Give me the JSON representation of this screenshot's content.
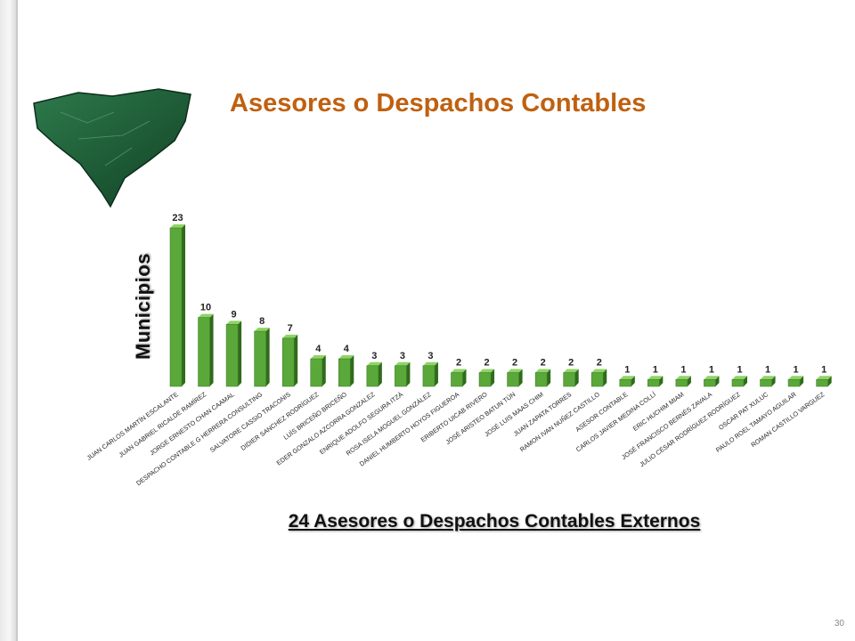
{
  "slide": {
    "title": "Asesores o Despachos Contables",
    "y_axis_label": "Municipios",
    "subtitle": "24 Asesores o Despachos Contables Externos",
    "page_number": "30"
  },
  "colors": {
    "title": "#c0600f",
    "bar_front": "#5aa83a",
    "bar_side": "#2f6b1c",
    "bar_top": "#8fd466",
    "map_green": "#1f5e38"
  },
  "chart_data": {
    "type": "bar",
    "title": "",
    "xlabel": "",
    "ylabel": "Municipios",
    "ylim": [
      0,
      23
    ],
    "grid": false,
    "categories": [
      "JUAN CARLOS MARTÍN ESCALANTE",
      "JUAN GABRIEL RICALDE RAMÍREZ",
      "JORGE ERNESTO CHAN CAAMAL",
      "DESPACHO CONTABLE G HERRERA CONSULTING",
      "SALVATORE CASSIO TRACONIS",
      "DIDIER SANCHEZ RODRÍGUEZ",
      "LUÍS BRICEÑO BRICEÑO",
      "EDER GONZALO AZCORRA GONZALEZ",
      "ENRIQUE ADOLFO SEGURA ITZÁ",
      "ROSA ISELA MOGUEL GONZÁLEZ",
      "DANIEL HUMBERTO HOYOS FIGUEROA",
      "ERIBERTO UICAB RIVERO",
      "JOSÉ ARISTEO BATUN TÚN",
      "JOSÉ LUIS MAAS CHIM",
      "JUAN ZAPATA TORRES",
      "RAMON IVAN NUÑEZ CASTILLO",
      "ASESOR CONTABLE",
      "CARLOS JAVIER MEDINA COLLÍ",
      "ERIC HUCHIM MIAM",
      "JOSÉ FRANCISCO BERNÉS ZAVALA",
      "JULIO CÉSAR RODRÍGUEZ RODRÍGUEZ",
      "OSCAR PAT XULUC",
      "PAULO ROEL TAMAYO AGUILAR",
      "ROMAN CASTILLO VARGUEZ"
    ],
    "values": [
      23,
      10,
      9,
      8,
      7,
      4,
      4,
      3,
      3,
      3,
      2,
      2,
      2,
      2,
      2,
      2,
      1,
      1,
      1,
      1,
      1,
      1,
      1,
      1
    ],
    "data_labels": [
      "23",
      "10",
      "9",
      "8",
      "7",
      "4",
      "4",
      "3",
      "3",
      "3",
      "2",
      "2",
      "2",
      "2",
      "2",
      "2",
      "1",
      "1",
      "1",
      "1",
      "1",
      "1",
      "1",
      "1"
    ]
  }
}
